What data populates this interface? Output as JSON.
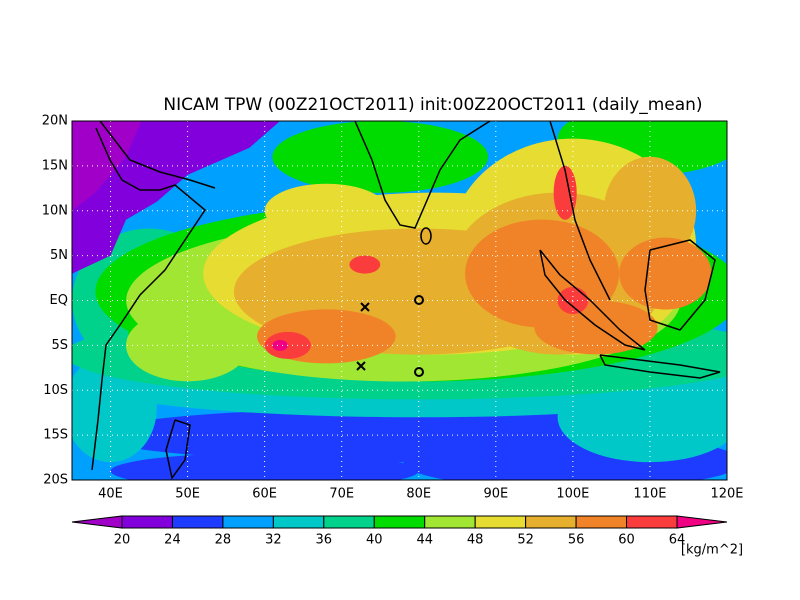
{
  "title": "NICAM TPW (00Z21OCT2011) init:00Z20OCT2011 (daily_mean)",
  "lat_labels": [
    "20N",
    "15N",
    "10N",
    "5N",
    "EQ",
    "5S",
    "10S",
    "15S",
    "20S"
  ],
  "lon_labels": [
    "40E",
    "50E",
    "60E",
    "70E",
    "80E",
    "90E",
    "100E",
    "110E",
    "120E"
  ],
  "colorbar": {
    "levels": [
      20,
      24,
      28,
      32,
      36,
      40,
      44,
      48,
      52,
      56,
      60,
      64
    ],
    "colors": [
      "#a000c8",
      "#8200dc",
      "#1e3cff",
      "#00a0ff",
      "#00c8c8",
      "#00d28c",
      "#00dc00",
      "#a0e632",
      "#e6dc32",
      "#e6af2d",
      "#f08228",
      "#fa3c3c",
      "#f00082"
    ],
    "unit": "[kg/m^2]"
  }
}
